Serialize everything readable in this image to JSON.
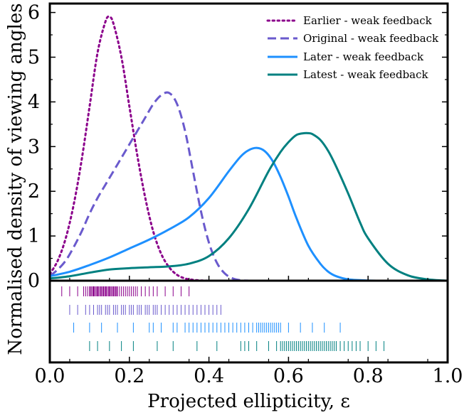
{
  "chart_data": {
    "type": "line",
    "xlabel": "Projected ellipticity, ε",
    "ylabel": "Normalised density of viewing angles",
    "xlim": [
      0.0,
      1.0
    ],
    "ylim": [
      0,
      6.2
    ],
    "xticks": [
      "0.0",
      "0.2",
      "0.4",
      "0.6",
      "0.8",
      "1.0"
    ],
    "yticks": [
      "0",
      "1",
      "2",
      "3",
      "4",
      "5",
      "6"
    ],
    "grid": false,
    "legend_position": "top-right",
    "series": [
      {
        "name": "Earlier - weak feedback",
        "color": "#8b008b",
        "style": "dotted",
        "x": [
          0.0,
          0.02,
          0.04,
          0.06,
          0.08,
          0.1,
          0.12,
          0.14,
          0.15,
          0.16,
          0.18,
          0.2,
          0.22,
          0.24,
          0.26,
          0.28,
          0.3,
          0.32,
          0.34,
          0.36,
          0.38,
          0.4
        ],
        "y": [
          0.15,
          0.45,
          0.95,
          1.7,
          2.7,
          3.9,
          5.1,
          5.8,
          5.9,
          5.75,
          5.0,
          3.9,
          2.8,
          1.85,
          1.1,
          0.6,
          0.3,
          0.13,
          0.05,
          0.02,
          0.005,
          0.0
        ]
      },
      {
        "name": "Original -  weak feedback",
        "color": "#6a5acd",
        "style": "dashed",
        "x": [
          0.0,
          0.02,
          0.04,
          0.06,
          0.08,
          0.1,
          0.12,
          0.14,
          0.16,
          0.18,
          0.2,
          0.22,
          0.24,
          0.26,
          0.28,
          0.3,
          0.32,
          0.34,
          0.36,
          0.38,
          0.4,
          0.42,
          0.44,
          0.46,
          0.48,
          0.5
        ],
        "y": [
          0.1,
          0.25,
          0.45,
          0.75,
          1.1,
          1.5,
          1.85,
          2.15,
          2.45,
          2.75,
          3.05,
          3.35,
          3.65,
          3.95,
          4.15,
          4.2,
          3.95,
          3.35,
          2.45,
          1.55,
          0.85,
          0.4,
          0.16,
          0.05,
          0.01,
          0.0
        ]
      },
      {
        "name": "Later -  weak feedback",
        "color": "#1e90ff",
        "style": "solid",
        "x": [
          0.0,
          0.05,
          0.1,
          0.15,
          0.2,
          0.25,
          0.3,
          0.35,
          0.4,
          0.45,
          0.48,
          0.5,
          0.52,
          0.54,
          0.56,
          0.58,
          0.6,
          0.62,
          0.65,
          0.68,
          0.7,
          0.72,
          0.75,
          0.8,
          0.85
        ],
        "y": [
          0.1,
          0.2,
          0.35,
          0.52,
          0.72,
          0.92,
          1.15,
          1.42,
          1.85,
          2.45,
          2.78,
          2.92,
          2.97,
          2.9,
          2.68,
          2.32,
          1.88,
          1.4,
          0.78,
          0.38,
          0.2,
          0.1,
          0.03,
          0.005,
          0.0
        ]
      },
      {
        "name": "Latest -  weak feedback",
        "color": "#008080",
        "style": "solid",
        "x": [
          0.0,
          0.05,
          0.1,
          0.15,
          0.2,
          0.25,
          0.3,
          0.35,
          0.4,
          0.45,
          0.5,
          0.55,
          0.58,
          0.6,
          0.62,
          0.64,
          0.65,
          0.66,
          0.68,
          0.7,
          0.72,
          0.75,
          0.78,
          0.8,
          0.85,
          0.9,
          0.95,
          1.0
        ],
        "y": [
          0.05,
          0.1,
          0.18,
          0.25,
          0.28,
          0.3,
          0.32,
          0.38,
          0.55,
          0.95,
          1.6,
          2.45,
          2.88,
          3.1,
          3.26,
          3.3,
          3.3,
          3.28,
          3.15,
          2.9,
          2.55,
          1.95,
          1.3,
          0.95,
          0.38,
          0.12,
          0.03,
          0.0
        ]
      }
    ],
    "rug": [
      {
        "name": "Earlier - weak feedback",
        "values": [
          0.03,
          0.05,
          0.07,
          0.085,
          0.09,
          0.095,
          0.1,
          0.102,
          0.105,
          0.108,
          0.11,
          0.112,
          0.115,
          0.118,
          0.12,
          0.122,
          0.125,
          0.128,
          0.13,
          0.133,
          0.135,
          0.138,
          0.14,
          0.142,
          0.145,
          0.148,
          0.15,
          0.152,
          0.155,
          0.158,
          0.16,
          0.163,
          0.165,
          0.168,
          0.17,
          0.175,
          0.18,
          0.185,
          0.19,
          0.195,
          0.2,
          0.205,
          0.21,
          0.215,
          0.22,
          0.23,
          0.24,
          0.25,
          0.26,
          0.27,
          0.29,
          0.31,
          0.33,
          0.35
        ]
      },
      {
        "name": "Original -  weak feedback",
        "values": [
          0.05,
          0.07,
          0.09,
          0.1,
          0.11,
          0.12,
          0.125,
          0.13,
          0.14,
          0.145,
          0.15,
          0.16,
          0.165,
          0.17,
          0.18,
          0.185,
          0.19,
          0.2,
          0.205,
          0.21,
          0.22,
          0.225,
          0.23,
          0.24,
          0.245,
          0.25,
          0.26,
          0.265,
          0.27,
          0.28,
          0.29,
          0.3,
          0.31,
          0.32,
          0.33,
          0.34,
          0.35,
          0.36,
          0.37,
          0.38,
          0.39,
          0.4,
          0.41,
          0.42,
          0.43
        ]
      },
      {
        "name": "Later -  weak feedback",
        "values": [
          0.06,
          0.1,
          0.13,
          0.17,
          0.21,
          0.25,
          0.26,
          0.28,
          0.31,
          0.32,
          0.34,
          0.35,
          0.36,
          0.37,
          0.38,
          0.39,
          0.4,
          0.41,
          0.42,
          0.43,
          0.44,
          0.45,
          0.46,
          0.47,
          0.48,
          0.49,
          0.5,
          0.51,
          0.52,
          0.525,
          0.53,
          0.535,
          0.54,
          0.545,
          0.55,
          0.555,
          0.56,
          0.565,
          0.57,
          0.575,
          0.58,
          0.6,
          0.63,
          0.66,
          0.69,
          0.73
        ]
      },
      {
        "name": "Latest -  weak feedback",
        "values": [
          0.1,
          0.12,
          0.15,
          0.18,
          0.21,
          0.27,
          0.31,
          0.37,
          0.42,
          0.48,
          0.49,
          0.5,
          0.52,
          0.55,
          0.57,
          0.58,
          0.585,
          0.59,
          0.595,
          0.6,
          0.605,
          0.61,
          0.615,
          0.62,
          0.625,
          0.63,
          0.635,
          0.64,
          0.645,
          0.65,
          0.655,
          0.66,
          0.665,
          0.67,
          0.675,
          0.68,
          0.685,
          0.69,
          0.695,
          0.7,
          0.705,
          0.71,
          0.715,
          0.72,
          0.73,
          0.74,
          0.75,
          0.76,
          0.77,
          0.78,
          0.8,
          0.82,
          0.84
        ]
      }
    ]
  }
}
